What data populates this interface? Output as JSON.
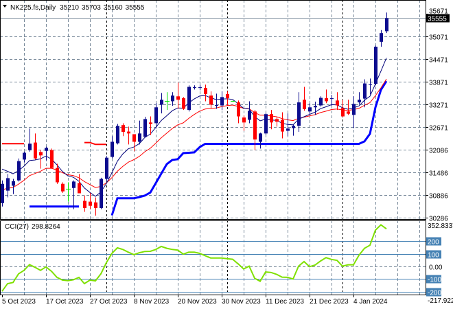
{
  "header": {
    "symbol": "NK225.fs,Daily",
    "open": "35210",
    "high": "35703",
    "low": "35160",
    "close": "35555"
  },
  "colors": {
    "bull": "#0c0c8e",
    "bear": "#ff0000",
    "doji": "#00e000",
    "fast_ma": "#00007a",
    "slow_ma": "#ff0000",
    "support": "#0000ff",
    "resistance": "#ff0000",
    "cci": "#7fe000",
    "cci_levels": "#4682b4"
  },
  "chart_data": [
    {
      "type": "candlestick",
      "title": "NK225.fs,Daily",
      "price_axis": {
        "ticks": [
          "35671",
          "35071",
          "34471",
          "33871",
          "33271",
          "32671",
          "32086",
          "31486",
          "30886",
          "30286"
        ],
        "ylim": [
          30286,
          35671
        ]
      },
      "last_price_label": "35555",
      "x_tick_labels": [
        "5 Oct 2023",
        "17 Oct 2023",
        "27 Oct 2023",
        "8 Nov 2023",
        "20 Nov 2023",
        "30 Nov 2023",
        "11 Dec 2023",
        "21 Dec 2023",
        "4 Jan 2024"
      ],
      "x_tick_candle_index": [
        0,
        8,
        16,
        24,
        32,
        40,
        48,
        56,
        64
      ],
      "period_separator_index": [
        19,
        41,
        62
      ],
      "ohlc": [
        [
          30670,
          31270,
          30580,
          31180
        ],
        [
          31000,
          31440,
          30820,
          31330
        ],
        [
          31130,
          31310,
          30910,
          31250
        ],
        [
          31270,
          31850,
          31240,
          31780
        ],
        [
          31820,
          32030,
          31740,
          32000
        ],
        [
          32070,
          32640,
          32030,
          32240
        ],
        [
          32270,
          32510,
          31820,
          31850
        ],
        [
          32020,
          32070,
          31580,
          31930
        ],
        [
          32050,
          32160,
          31800,
          32130
        ],
        [
          32070,
          32110,
          31580,
          31600
        ],
        [
          31600,
          31710,
          31180,
          31220
        ],
        [
          31180,
          31220,
          30940,
          30980
        ],
        [
          31040,
          31220,
          30710,
          31040
        ],
        [
          31070,
          31270,
          30510,
          31240
        ],
        [
          31200,
          31440,
          30930,
          30930
        ],
        [
          30730,
          30870,
          30440,
          30540
        ],
        [
          30710,
          30940,
          30510,
          30600
        ],
        [
          30690,
          30820,
          30340,
          30540
        ],
        [
          30540,
          31340,
          30510,
          31310
        ],
        [
          31310,
          31910,
          31250,
          31870
        ],
        [
          31890,
          32440,
          31850,
          32290
        ],
        [
          32250,
          32760,
          32220,
          32710
        ],
        [
          32730,
          32780,
          32440,
          32550
        ],
        [
          32560,
          32690,
          32220,
          32510
        ],
        [
          32490,
          32490,
          32040,
          32290
        ],
        [
          32290,
          32850,
          32220,
          32510
        ],
        [
          32420,
          32950,
          32400,
          32890
        ],
        [
          32800,
          32960,
          32470,
          32760
        ],
        [
          32780,
          33310,
          32640,
          33200
        ],
        [
          33270,
          33580,
          33040,
          33400
        ],
        [
          33360,
          33600,
          33130,
          33360
        ],
        [
          33360,
          33600,
          33240,
          33510
        ],
        [
          33490,
          33850,
          33160,
          33400
        ],
        [
          33440,
          33470,
          33130,
          33160
        ],
        [
          33130,
          33780,
          33090,
          33740
        ],
        [
          33710,
          33780,
          33670,
          33730
        ],
        [
          33710,
          33800,
          33650,
          33730
        ],
        [
          33710,
          33800,
          33360,
          33550
        ],
        [
          33510,
          33620,
          33160,
          33270
        ],
        [
          33240,
          33560,
          33160,
          33260
        ],
        [
          33250,
          33620,
          33130,
          33470
        ],
        [
          33550,
          33620,
          33250,
          33440
        ],
        [
          33360,
          33380,
          33340,
          33360
        ],
        [
          33330,
          33380,
          32780,
          32960
        ],
        [
          32930,
          32980,
          32580,
          32800
        ],
        [
          32870,
          33360,
          32780,
          33110
        ],
        [
          33090,
          33130,
          32070,
          32350
        ],
        [
          32290,
          32530,
          32110,
          32510
        ],
        [
          32510,
          33050,
          32470,
          33020
        ],
        [
          33020,
          33130,
          32620,
          32800
        ],
        [
          32890,
          32950,
          32690,
          32820
        ],
        [
          32870,
          33070,
          32380,
          32560
        ],
        [
          32580,
          33040,
          32440,
          32640
        ],
        [
          32650,
          32740,
          32450,
          32710
        ],
        [
          32710,
          33600,
          32550,
          33330
        ],
        [
          33400,
          33740,
          33110,
          33150
        ],
        [
          33090,
          33310,
          33000,
          33200
        ],
        [
          33200,
          33350,
          33000,
          33240
        ],
        [
          33250,
          33490,
          33220,
          33450
        ],
        [
          33440,
          33670,
          33310,
          33360
        ],
        [
          33420,
          33530,
          33240,
          33440
        ],
        [
          33380,
          33600,
          33130,
          33250
        ],
        [
          33180,
          33400,
          32950,
          32960
        ],
        [
          33090,
          33400,
          33000,
          33030
        ],
        [
          33000,
          33490,
          32650,
          33290
        ],
        [
          33330,
          33600,
          33270,
          33400
        ],
        [
          33430,
          33940,
          33200,
          33830
        ],
        [
          33790,
          33960,
          33540,
          33810
        ],
        [
          33820,
          34830,
          33780,
          34800
        ],
        [
          34930,
          35240,
          34800,
          35160
        ],
        [
          35210,
          35703,
          35160,
          35555
        ]
      ],
      "support_line": [
        null,
        null,
        null,
        null,
        null,
        30580,
        30580,
        30580,
        30580,
        30580,
        30580,
        30580,
        30580,
        30580,
        30580,
        null,
        null,
        null,
        null,
        null,
        30345,
        30800,
        30800,
        30800,
        30800,
        30830,
        30870,
        30950,
        31200,
        31450,
        31700,
        31810,
        31830,
        31990,
        32000,
        32010,
        32150,
        32235,
        32235,
        32235,
        32235,
        32235,
        32235,
        32235,
        32235,
        32235,
        32235,
        32235,
        32235,
        32235,
        32235,
        32235,
        32235,
        32235,
        32235,
        32235,
        32235,
        32235,
        32235,
        32235,
        32235,
        32235,
        32235,
        32235,
        32235,
        32235,
        32300,
        32500,
        33200,
        33660,
        33890
      ],
      "resistance_line": [
        32240,
        32240,
        32240,
        32240,
        32240,
        null,
        null,
        null,
        null,
        null,
        null,
        null,
        null,
        null,
        null,
        32270,
        32270,
        32220,
        32220,
        32220
      ]
    },
    {
      "type": "line",
      "title": "CCI(27)",
      "current_value": "298.8264",
      "axis_labels": {
        "max": "352.8337",
        "min": "-217.922",
        "zero": "0.00"
      },
      "level_labels": [
        "200",
        "100",
        "-100",
        "-200"
      ],
      "levels": [
        200,
        100,
        -100,
        -200
      ],
      "ylim": [
        -217.922,
        352.8337
      ],
      "values": [
        -198,
        -137,
        -128,
        -59,
        -31,
        15,
        -7,
        -31,
        -4,
        -39,
        -87,
        -109,
        -113,
        -106,
        -87,
        -137,
        -109,
        -115,
        -59,
        30,
        104,
        148,
        135,
        113,
        94,
        109,
        119,
        120,
        135,
        159,
        144,
        135,
        130,
        98,
        113,
        113,
        104,
        85,
        67,
        67,
        67,
        61,
        57,
        20,
        -20,
        2,
        -94,
        -118,
        -44,
        -48,
        -63,
        -85,
        -87,
        -100,
        2,
        39,
        -2,
        11,
        43,
        70,
        56,
        48,
        2,
        13,
        13,
        89,
        144,
        169,
        289,
        331,
        299
      ]
    }
  ]
}
